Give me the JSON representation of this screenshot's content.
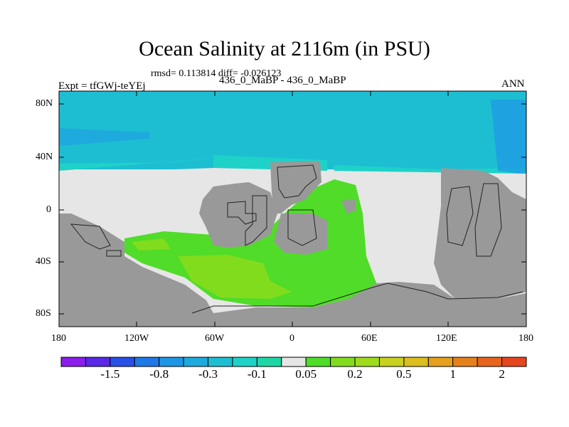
{
  "title": "Ocean Salinity at 2116m (in PSU)",
  "stats": "rmsd= 0.113814 diff= -0.026123",
  "experiment": "Expt = tfGWj-teYEj",
  "comparison": "436_0_MaBP - 436_0_MaBP",
  "period": "ANN",
  "lat_ticks": [
    "80N",
    "40N",
    "0",
    "40S",
    "80S"
  ],
  "lon_ticks": [
    "180",
    "120W",
    "60W",
    "0",
    "60E",
    "120E",
    "180"
  ],
  "colorbar": {
    "colors": [
      "#8c1eeb",
      "#5a28e6",
      "#2850e6",
      "#1e78e6",
      "#1e96e6",
      "#1eaadc",
      "#1ebed2",
      "#1ed2c8",
      "#1ed7a5",
      "#e6e6e6",
      "#50dc28",
      "#82dc1e",
      "#a0dc1e",
      "#c8d21e",
      "#dcbe1e",
      "#e6a01e",
      "#e6821e",
      "#e6641e",
      "#e6461e"
    ],
    "labels": [
      "-1.5",
      "-0.8",
      "-0.3",
      "-0.1",
      "0.05",
      "0.2",
      "0.5",
      "1",
      "2"
    ]
  }
}
